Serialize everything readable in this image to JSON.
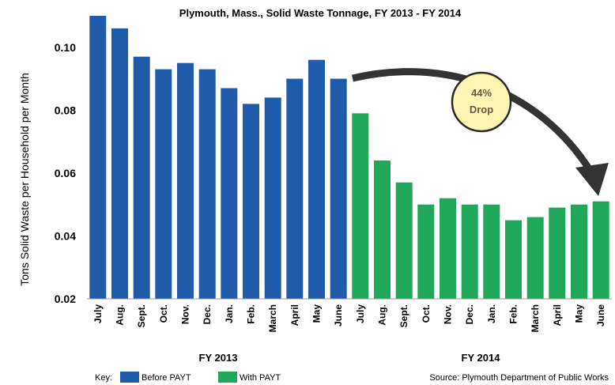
{
  "chart_data": {
    "type": "bar",
    "title": "Plymouth, Mass., Solid Waste Tonnage, FY 2013 - FY 2014",
    "ylabel": "Tons Solid Waste per Household per Month",
    "ylim": [
      0.02,
      0.11
    ],
    "yticks": [
      "0.02",
      "0.04",
      "0.06",
      "0.08",
      "0.10"
    ],
    "grid": false,
    "categories": [
      "July",
      "Aug.",
      "Sept.",
      "Oct.",
      "Nov.",
      "Dec.",
      "Jan.",
      "Feb.",
      "March",
      "April",
      "May",
      "June",
      "July",
      "Aug.",
      "Sept.",
      "Oct.",
      "Nov.",
      "Dec.",
      "Jan.",
      "Feb.",
      "March",
      "April",
      "May",
      "June"
    ],
    "groups": [
      {
        "label": "FY 2013",
        "start": 0,
        "end": 11
      },
      {
        "label": "FY 2014",
        "start": 12,
        "end": 23
      }
    ],
    "series": [
      {
        "name": "Before PAYT",
        "color": "#1f5ba8",
        "values": [
          0.11,
          0.106,
          0.097,
          0.093,
          0.095,
          0.093,
          0.087,
          0.082,
          0.084,
          0.09,
          0.096,
          0.09,
          null,
          null,
          null,
          null,
          null,
          null,
          null,
          null,
          null,
          null,
          null,
          null
        ]
      },
      {
        "name": "With PAYT",
        "color": "#1fa85a",
        "values": [
          null,
          null,
          null,
          null,
          null,
          null,
          null,
          null,
          null,
          null,
          null,
          null,
          0.079,
          0.064,
          0.057,
          0.05,
          0.052,
          0.05,
          0.05,
          0.045,
          0.046,
          0.049,
          0.05,
          0.051
        ]
      }
    ],
    "annotation": {
      "line1": "44%",
      "line2": "Drop",
      "fill": "#fff6b5",
      "arrow_color": "#333333"
    },
    "key_label": "Key:",
    "source": "Source: Plymouth Department of Public Works"
  }
}
